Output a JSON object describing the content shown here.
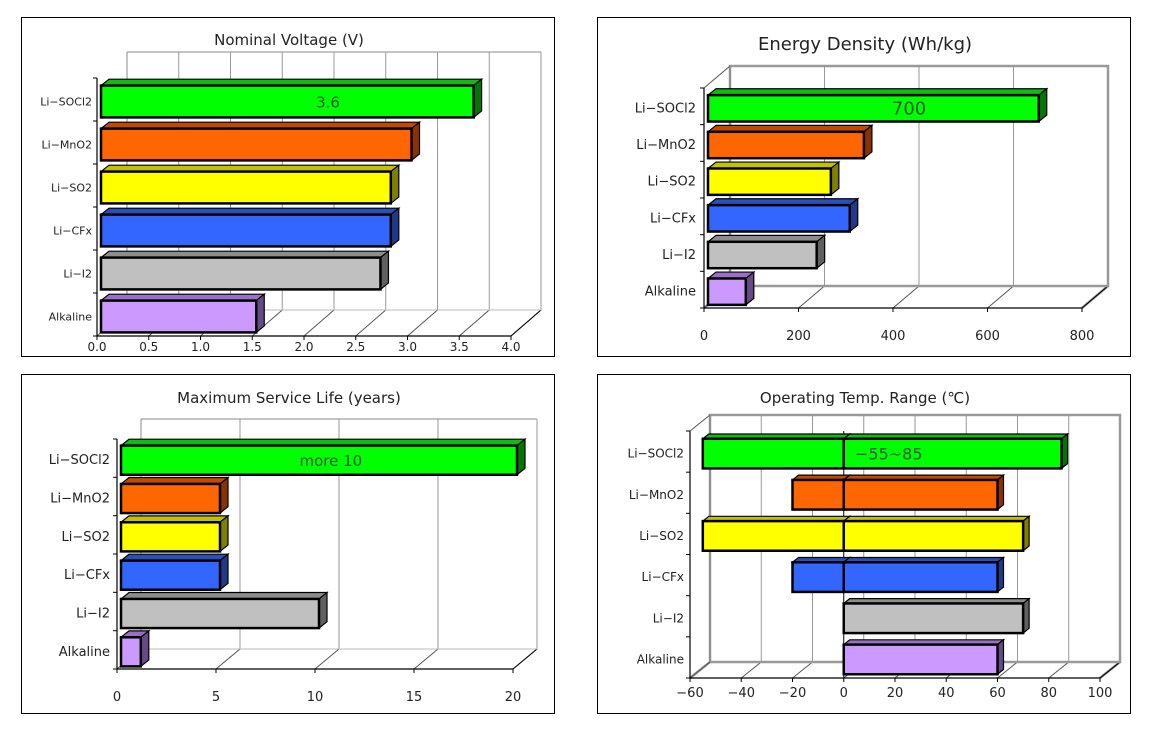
{
  "chart_data": [
    {
      "id": "voltage",
      "type": "bar",
      "orientation": "horizontal",
      "style": "3d",
      "title": "Nominal Voltage (V)",
      "xlabel": "",
      "ylabel": "",
      "categories": [
        "Li-SOCl2",
        "Li-MnO2",
        "Li-SO2",
        "Li-CFx",
        "Li-I2",
        "Alkaline"
      ],
      "values": [
        3.6,
        3.0,
        2.8,
        2.8,
        2.7,
        1.5
      ],
      "xlim": [
        0,
        4.0
      ],
      "xticks": [
        "0.0",
        "0.5",
        "1.0",
        "1.5",
        "2.0",
        "2.5",
        "3.0",
        "3.5",
        "4.0"
      ],
      "grid": true,
      "annotation": {
        "category": "Li-SOCl2",
        "text": "3.6"
      }
    },
    {
      "id": "energy",
      "type": "bar",
      "orientation": "horizontal",
      "style": "3d",
      "title": "Energy Density (Wh/kg)",
      "xlabel": "",
      "ylabel": "",
      "categories": [
        "Li-SOCl2",
        "Li-MnO2",
        "Li-SO2",
        "Li-CFx",
        "Li-I2",
        "Alkaline"
      ],
      "values": [
        700,
        330,
        260,
        300,
        230,
        80
      ],
      "xlim": [
        0,
        800
      ],
      "xticks": [
        "0",
        "200",
        "400",
        "600",
        "800"
      ],
      "grid": true,
      "annotation": {
        "category": "Li-SOCl2",
        "text": "700"
      }
    },
    {
      "id": "life",
      "type": "bar",
      "orientation": "horizontal",
      "style": "3d",
      "title": "Maximum Service Life (years)",
      "xlabel": "",
      "ylabel": "",
      "categories": [
        "Li-SOCl2",
        "Li-MnO2",
        "Li-SO2",
        "Li-CFx",
        "Li-I2",
        "Alkaline"
      ],
      "values": [
        20,
        5,
        5,
        5,
        10,
        1
      ],
      "xlim": [
        0,
        20
      ],
      "xticks": [
        "0",
        "5",
        "10",
        "15",
        "20"
      ],
      "grid": true,
      "annotation": {
        "category": "Li-SOCl2",
        "text": "more 10"
      }
    },
    {
      "id": "temp",
      "type": "bar",
      "orientation": "horizontal",
      "style": "3d-range",
      "title": "Operating Temp. Range (℃)",
      "xlabel": "",
      "ylabel": "",
      "categories": [
        "Li-SOCl2",
        "Li-MnO2",
        "Li-SO2",
        "Li-CFx",
        "Li-I2",
        "Alkaline"
      ],
      "ranges": [
        [
          -55,
          85
        ],
        [
          -20,
          60
        ],
        [
          -55,
          70
        ],
        [
          -20,
          60
        ],
        [
          0,
          70
        ],
        [
          0,
          60
        ]
      ],
      "xlim": [
        -60,
        100
      ],
      "xticks": [
        "-60",
        "-40",
        "-20",
        "0",
        "20",
        "40",
        "60",
        "80",
        "100"
      ],
      "grid": true,
      "annotation": {
        "category": "Li-SOCl2",
        "text": "-55~85"
      }
    }
  ],
  "colors": {
    "Li-SOCl2": {
      "front": "#00ff00",
      "top": "#11bb11",
      "side": "#007700"
    },
    "Li-MnO2": {
      "front": "#ff6600",
      "top": "#c24a00",
      "side": "#8a3300"
    },
    "Li-SO2": {
      "front": "#ffff00",
      "top": "#c2c200",
      "side": "#808000"
    },
    "Li-CFx": {
      "front": "#3366ff",
      "top": "#2a4fb8",
      "side": "#1f3a8a"
    },
    "Li-I2": {
      "front": "#c0c0c0",
      "top": "#8c8c8c",
      "side": "#606060"
    },
    "Alkaline": {
      "front": "#cc99ff",
      "top": "#9a70c4",
      "side": "#654a86"
    }
  }
}
